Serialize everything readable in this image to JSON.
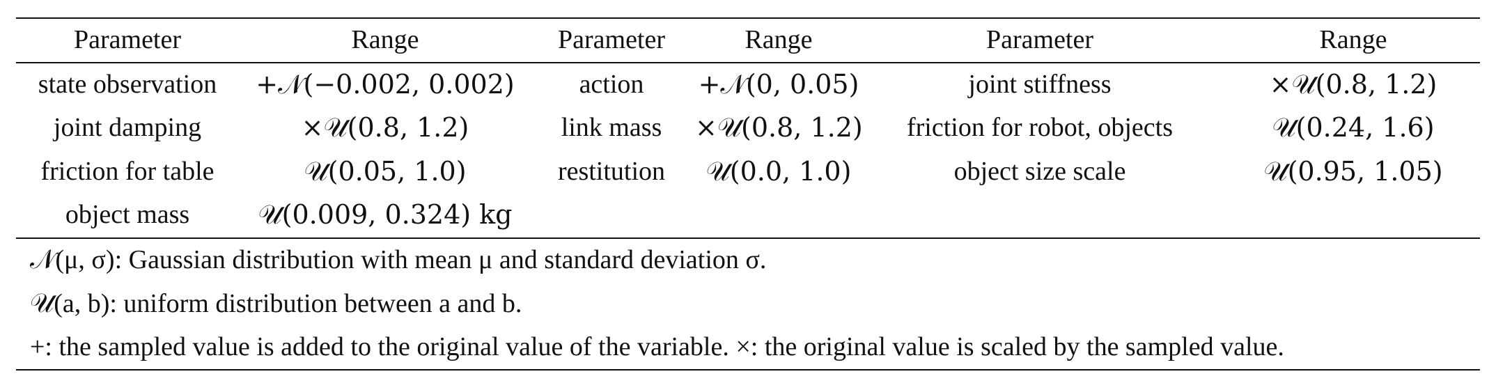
{
  "table": {
    "headers": [
      "Parameter",
      "Range",
      "Parameter",
      "Range",
      "Parameter",
      "Range"
    ],
    "rows": [
      [
        "state observation",
        "+𝒩(−0.002, 0.002)",
        "action",
        "+𝒩(0, 0.05)",
        "joint stiffness",
        "×𝒰(0.8, 1.2)"
      ],
      [
        "joint damping",
        "×𝒰(0.8, 1.2)",
        "link mass",
        "×𝒰(0.8, 1.2)",
        "friction for robot, objects",
        "𝒰(0.24, 1.6)"
      ],
      [
        "friction for table",
        "𝒰(0.05, 1.0)",
        "restitution",
        "𝒰(0.0, 1.0)",
        "object size scale",
        "𝒰(0.95, 1.05)"
      ],
      [
        "object mass",
        "𝒰(0.009, 0.324) kg",
        "",
        "",
        "",
        ""
      ]
    ]
  },
  "notes": [
    "𝒩(μ, σ): Gaussian distribution with mean μ and standard deviation σ.",
    "𝒰(a, b): uniform distribution between a and b.",
    "+: the sampled value is added to the original value of the variable. ×: the original value is scaled by the sampled value."
  ]
}
